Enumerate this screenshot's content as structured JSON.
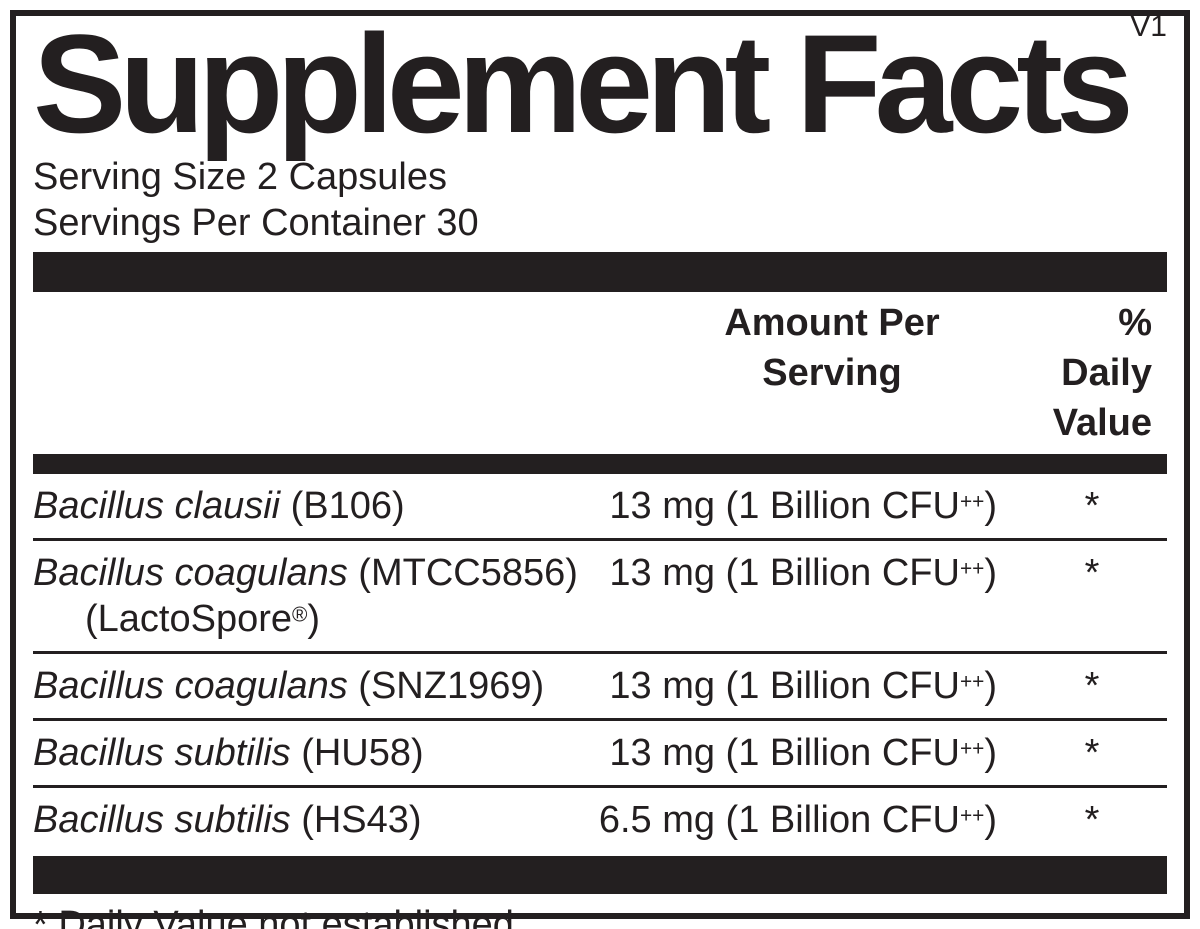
{
  "colors": {
    "ink": "#231f20",
    "background": "#ffffff"
  },
  "header": {
    "title": "Supplement Facts",
    "version": "V1",
    "serving_size": "Serving Size 2 Capsules",
    "servings_per_container": "Servings Per Container 30"
  },
  "columns": {
    "amount": {
      "line1": "Amount Per",
      "line2": "Serving"
    },
    "daily_value": {
      "line1": "% Daily",
      "line2": "Value"
    }
  },
  "rows": [
    {
      "name_italic": "Bacillus clausii",
      "name_regular": " (B106)",
      "amount_main": "13 mg (1 Billion CFU",
      "amount_sup": "++",
      "amount_close": ")",
      "dv": "*"
    },
    {
      "name_italic": "Bacillus coagulans",
      "name_regular": " (MTCC5856)",
      "line2_pre": "(LactoSpore",
      "line2_sup": "®",
      "line2_close": ")",
      "amount_main": "13 mg (1 Billion CFU",
      "amount_sup": "++",
      "amount_close": ")",
      "dv": "*"
    },
    {
      "name_italic": "Bacillus coagulans",
      "name_regular": " (SNZ1969)",
      "amount_main": "13 mg (1 Billion CFU",
      "amount_sup": "++",
      "amount_close": ")",
      "dv": "*"
    },
    {
      "name_italic": "Bacillus subtilis",
      "name_regular": " (HU58)",
      "amount_main": "13 mg (1 Billion CFU",
      "amount_sup": "++",
      "amount_close": ")",
      "dv": "*"
    },
    {
      "name_italic": "Bacillus subtilis",
      "name_regular": " (HS43)",
      "amount_main": "6.5 mg (1 Billion CFU",
      "amount_sup": "++",
      "amount_close": ")",
      "dv": "*"
    }
  ],
  "footnote": "* Daily Value not established."
}
